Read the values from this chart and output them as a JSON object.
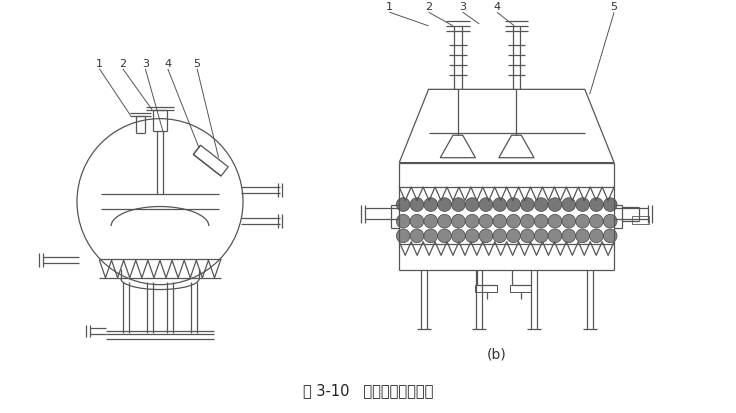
{
  "title": "图 3-10   砂石过滤器构造图",
  "label_b": "(b)",
  "bg_color": "#ffffff",
  "line_color": "#555555",
  "title_fontsize": 10.5
}
